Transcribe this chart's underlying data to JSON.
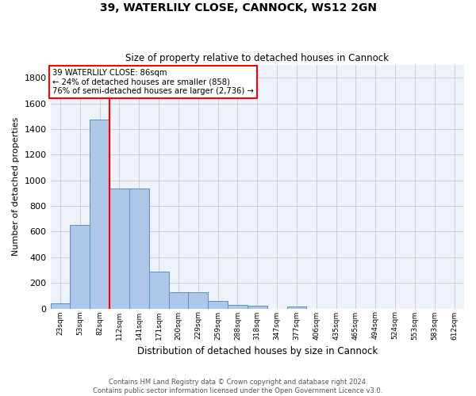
{
  "title_line1": "39, WATERLILY CLOSE, CANNOCK, WS12 2GN",
  "title_line2": "Size of property relative to detached houses in Cannock",
  "xlabel": "Distribution of detached houses by size in Cannock",
  "ylabel": "Number of detached properties",
  "bar_labels": [
    "23sqm",
    "53sqm",
    "82sqm",
    "112sqm",
    "141sqm",
    "171sqm",
    "200sqm",
    "229sqm",
    "259sqm",
    "288sqm",
    "318sqm",
    "347sqm",
    "377sqm",
    "406sqm",
    "435sqm",
    "465sqm",
    "494sqm",
    "524sqm",
    "553sqm",
    "583sqm",
    "612sqm"
  ],
  "bar_values": [
    38,
    650,
    1475,
    935,
    935,
    290,
    125,
    125,
    60,
    25,
    20,
    0,
    15,
    0,
    0,
    0,
    0,
    0,
    0,
    0,
    0
  ],
  "bar_color": "#aec6e8",
  "bar_edge_color": "#5a8fc2",
  "background_color": "#eef2fa",
  "grid_color": "#cccccc",
  "ylim": [
    0,
    1900
  ],
  "yticks": [
    0,
    200,
    400,
    600,
    800,
    1000,
    1200,
    1400,
    1600,
    1800
  ],
  "vline_x_index": 2,
  "annotation_box": {
    "text_line1": "39 WATERLILY CLOSE: 86sqm",
    "text_line2": "← 24% of detached houses are smaller (858)",
    "text_line3": "76% of semi-detached houses are larger (2,736) →"
  },
  "footer_line1": "Contains HM Land Registry data © Crown copyright and database right 2024.",
  "footer_line2": "Contains public sector information licensed under the Open Government Licence v3.0."
}
